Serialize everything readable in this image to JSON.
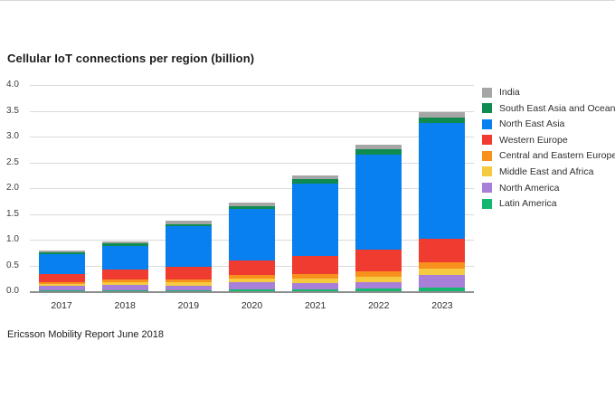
{
  "page": {
    "title": "Cellular IoT connections per region (billion)",
    "source": "Ericsson Mobility Report June 2018"
  },
  "chart_data": {
    "type": "bar",
    "stacked": true,
    "title": "Cellular IoT connections per region (billion)",
    "xlabel": "",
    "ylabel": "",
    "ylim": [
      0,
      4
    ],
    "yticks": [
      0,
      0.5,
      1,
      1.5,
      2,
      2.5,
      3,
      3.5,
      4
    ],
    "ytick_labels": [
      "0.0",
      "0.5",
      "1.0",
      "1.5",
      "2.0",
      "2.5",
      "3.0",
      "3.5",
      "4.0"
    ],
    "grid": "horizontal",
    "legend_position": "right",
    "categories": [
      "2017",
      "2018",
      "2019",
      "2020",
      "2021",
      "2022",
      "2023"
    ],
    "series": [
      {
        "name": "Latin America",
        "color": "#15b76e",
        "values": [
          0.03,
          0.04,
          0.04,
          0.06,
          0.06,
          0.07,
          0.08
        ]
      },
      {
        "name": "North America",
        "color": "#a87fd8",
        "values": [
          0.1,
          0.1,
          0.09,
          0.13,
          0.12,
          0.12,
          0.25
        ]
      },
      {
        "name": "Middle East and Africa",
        "color": "#f5ca40",
        "values": [
          0.03,
          0.05,
          0.06,
          0.07,
          0.08,
          0.11,
          0.13
        ]
      },
      {
        "name": "Central and Eastern Europe",
        "color": "#f8901d",
        "values": [
          0.03,
          0.05,
          0.06,
          0.07,
          0.1,
          0.11,
          0.12
        ]
      },
      {
        "name": "Western Europe",
        "color": "#ef3b30",
        "values": [
          0.17,
          0.2,
          0.24,
          0.29,
          0.35,
          0.41,
          0.46
        ]
      },
      {
        "name": "North East Asia",
        "color": "#0880f0",
        "values": [
          0.38,
          0.45,
          0.79,
          0.99,
          1.4,
          1.85,
          2.25
        ]
      },
      {
        "name": "South East Asia and Oceania",
        "color": "#0f8b4f",
        "values": [
          0.03,
          0.05,
          0.04,
          0.06,
          0.09,
          0.1,
          0.09
        ]
      },
      {
        "name": "India",
        "color": "#a6a6a6",
        "values": [
          0.03,
          0.04,
          0.06,
          0.06,
          0.06,
          0.09,
          0.11
        ]
      }
    ],
    "totals": [
      0.8,
      0.98,
      1.38,
      1.73,
      2.26,
      2.86,
      3.49
    ]
  }
}
